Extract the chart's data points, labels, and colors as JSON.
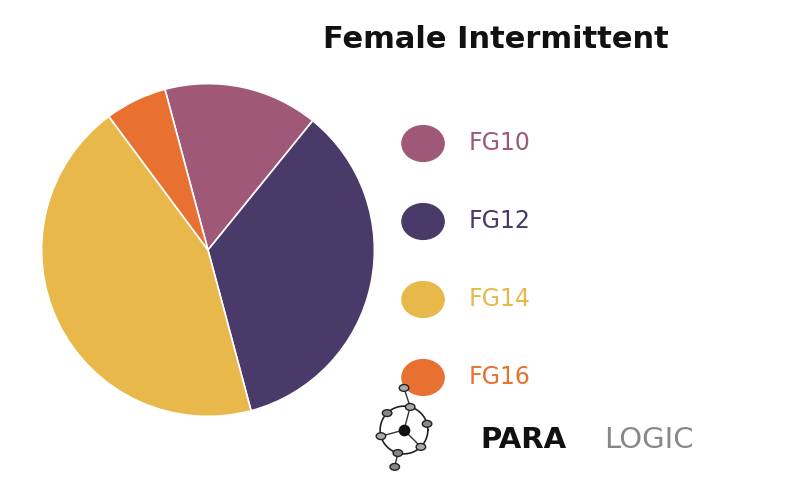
{
  "title": "Female Intermittent",
  "slices": [
    {
      "label": "FG10",
      "value": 15,
      "color": "#a05878"
    },
    {
      "label": "FG12",
      "value": 35,
      "color": "#4a3a6a"
    },
    {
      "label": "FG14",
      "value": 44,
      "color": "#e8b84b"
    },
    {
      "label": "FG16",
      "value": 6,
      "color": "#e87030"
    }
  ],
  "title_fontsize": 22,
  "legend_fontsize": 17,
  "background_color": "#ffffff",
  "bottom_bar_color": "#1a1a1a",
  "para_color": "#111111",
  "logic_color": "#888888"
}
